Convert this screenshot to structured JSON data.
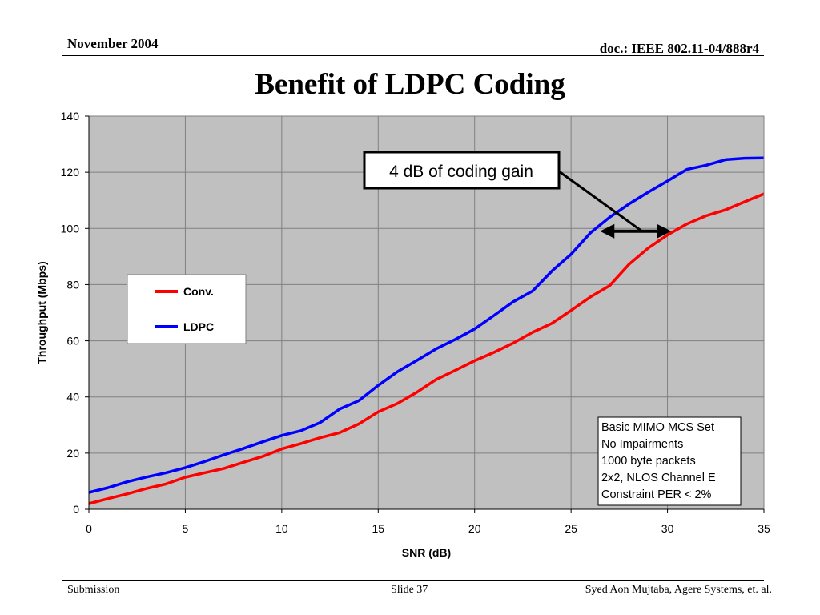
{
  "header": {
    "date": "November 2004",
    "doc": "doc.: IEEE 802.11-04/888r4"
  },
  "slide_title": "Benefit of LDPC Coding",
  "footer": {
    "left": "Submission",
    "center": "Slide 37",
    "right": "Syed Aon Mujtaba, Agere Systems, et. al."
  },
  "colors": {
    "plot_background": "#c0c0c0",
    "grid": "#808080",
    "conv": "#ff0000",
    "ldpc": "#0000ff"
  },
  "chart_data": {
    "type": "line",
    "title": "",
    "xlabel": "SNR (dB)",
    "ylabel": "Throughput (Mbps)",
    "xlim": [
      0,
      35
    ],
    "ylim": [
      0,
      140
    ],
    "xticks": [
      0,
      5,
      10,
      15,
      20,
      25,
      30,
      35
    ],
    "yticks": [
      0,
      20,
      40,
      60,
      80,
      100,
      120,
      140
    ],
    "grid": true,
    "legend_position": "left",
    "x": [
      0,
      1,
      2,
      3,
      4,
      5,
      6,
      7,
      8,
      9,
      10,
      11,
      12,
      13,
      14,
      15,
      16,
      17,
      18,
      19,
      20,
      21,
      22,
      23,
      24,
      25,
      26,
      27,
      28,
      29,
      30,
      31,
      32,
      33,
      34,
      35
    ],
    "series": [
      {
        "name": "Conv.",
        "color": "#ff0000",
        "values": [
          2.0,
          3.8,
          5.5,
          7.4,
          9.0,
          11.4,
          13.0,
          14.5,
          16.7,
          18.8,
          21.5,
          23.4,
          25.5,
          27.3,
          30.4,
          34.7,
          37.7,
          41.7,
          46.2,
          49.5,
          52.9,
          55.9,
          59.2,
          63.0,
          66.2,
          70.8,
          75.6,
          79.6,
          87.2,
          93.0,
          97.7,
          101.6,
          104.5,
          106.6,
          109.5,
          112.3
        ]
      },
      {
        "name": "LDPC",
        "color": "#0000ff",
        "values": [
          6.0,
          7.7,
          9.8,
          11.5,
          13.0,
          14.8,
          17.0,
          19.4,
          21.6,
          24.0,
          26.3,
          28.0,
          30.9,
          35.7,
          38.7,
          44.1,
          49.0,
          53.0,
          57.1,
          60.5,
          64.2,
          69.0,
          73.9,
          77.7,
          84.8,
          90.8,
          98.4,
          104.0,
          108.7,
          112.9,
          116.9,
          121.0,
          122.5,
          124.5,
          125.0,
          125.1
        ]
      }
    ],
    "annotations": {
      "callout": "4 dB of coding gain",
      "notes": [
        "Basic MIMO MCS Set",
        "No Impairments",
        "1000 byte packets",
        "2x2, NLOS Channel E",
        "Constraint PER < 2%"
      ],
      "arrow_x_range": [
        26.5,
        30.2
      ],
      "arrow_y": 99
    }
  }
}
